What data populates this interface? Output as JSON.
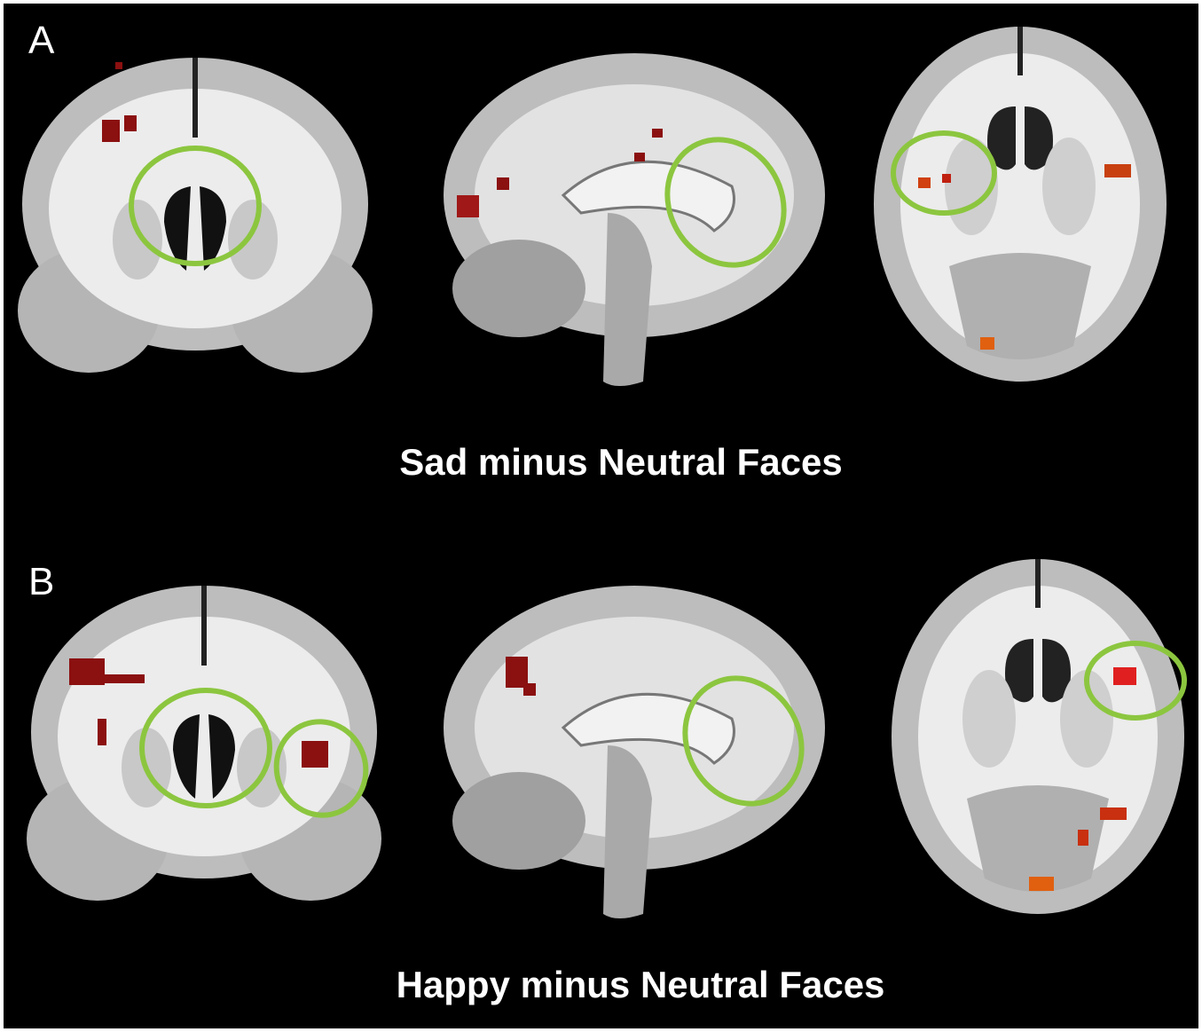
{
  "panels": [
    {
      "label": "A",
      "caption": "Sad minus Neutral Faces"
    },
    {
      "label": "B",
      "caption": "Happy minus Neutral Faces"
    }
  ]
}
